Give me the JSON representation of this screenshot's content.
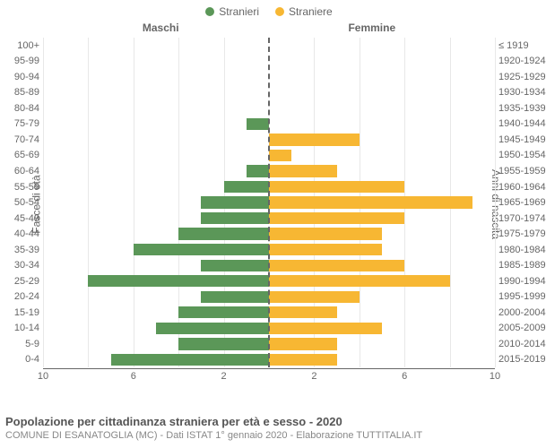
{
  "legend": {
    "left": {
      "label": "Stranieri",
      "color": "#5b9758"
    },
    "right": {
      "label": "Straniere",
      "color": "#f7b733"
    }
  },
  "column_titles": {
    "left": "Maschi",
    "right": "Femmine"
  },
  "axis_titles": {
    "left": "Fasce di età",
    "right": "Anni di nascita"
  },
  "grid_color": "#e8e8e8",
  "center_dash_color": "#666666",
  "background_color": "#ffffff",
  "label_color": "#666666",
  "label_fontsize": 11,
  "x_axis": {
    "max": 10,
    "ticks": [
      10,
      6,
      2,
      2,
      6,
      10
    ]
  },
  "rows": [
    {
      "age": "100+",
      "birth": "≤ 1919",
      "m": 0,
      "f": 0
    },
    {
      "age": "95-99",
      "birth": "1920-1924",
      "m": 0,
      "f": 0
    },
    {
      "age": "90-94",
      "birth": "1925-1929",
      "m": 0,
      "f": 0
    },
    {
      "age": "85-89",
      "birth": "1930-1934",
      "m": 0,
      "f": 0
    },
    {
      "age": "80-84",
      "birth": "1935-1939",
      "m": 0,
      "f": 0
    },
    {
      "age": "75-79",
      "birth": "1940-1944",
      "m": 1,
      "f": 0
    },
    {
      "age": "70-74",
      "birth": "1945-1949",
      "m": 0,
      "f": 4
    },
    {
      "age": "65-69",
      "birth": "1950-1954",
      "m": 0,
      "f": 1
    },
    {
      "age": "60-64",
      "birth": "1955-1959",
      "m": 1,
      "f": 3
    },
    {
      "age": "55-59",
      "birth": "1960-1964",
      "m": 2,
      "f": 6
    },
    {
      "age": "50-54",
      "birth": "1965-1969",
      "m": 3,
      "f": 9
    },
    {
      "age": "45-49",
      "birth": "1970-1974",
      "m": 3,
      "f": 6
    },
    {
      "age": "40-44",
      "birth": "1975-1979",
      "m": 4,
      "f": 5
    },
    {
      "age": "35-39",
      "birth": "1980-1984",
      "m": 6,
      "f": 5
    },
    {
      "age": "30-34",
      "birth": "1985-1989",
      "m": 3,
      "f": 6
    },
    {
      "age": "25-29",
      "birth": "1990-1994",
      "m": 8,
      "f": 8
    },
    {
      "age": "20-24",
      "birth": "1995-1999",
      "m": 3,
      "f": 4
    },
    {
      "age": "15-19",
      "birth": "2000-2004",
      "m": 4,
      "f": 3
    },
    {
      "age": "10-14",
      "birth": "2005-2009",
      "m": 5,
      "f": 5
    },
    {
      "age": "5-9",
      "birth": "2010-2014",
      "m": 4,
      "f": 3
    },
    {
      "age": "0-4",
      "birth": "2015-2019",
      "m": 7,
      "f": 3
    }
  ],
  "footer": {
    "title": "Popolazione per cittadinanza straniera per età e sesso - 2020",
    "subtitle": "COMUNE DI ESANATOGLIA (MC) - Dati ISTAT 1° gennaio 2020 - Elaborazione TUTTITALIA.IT"
  }
}
